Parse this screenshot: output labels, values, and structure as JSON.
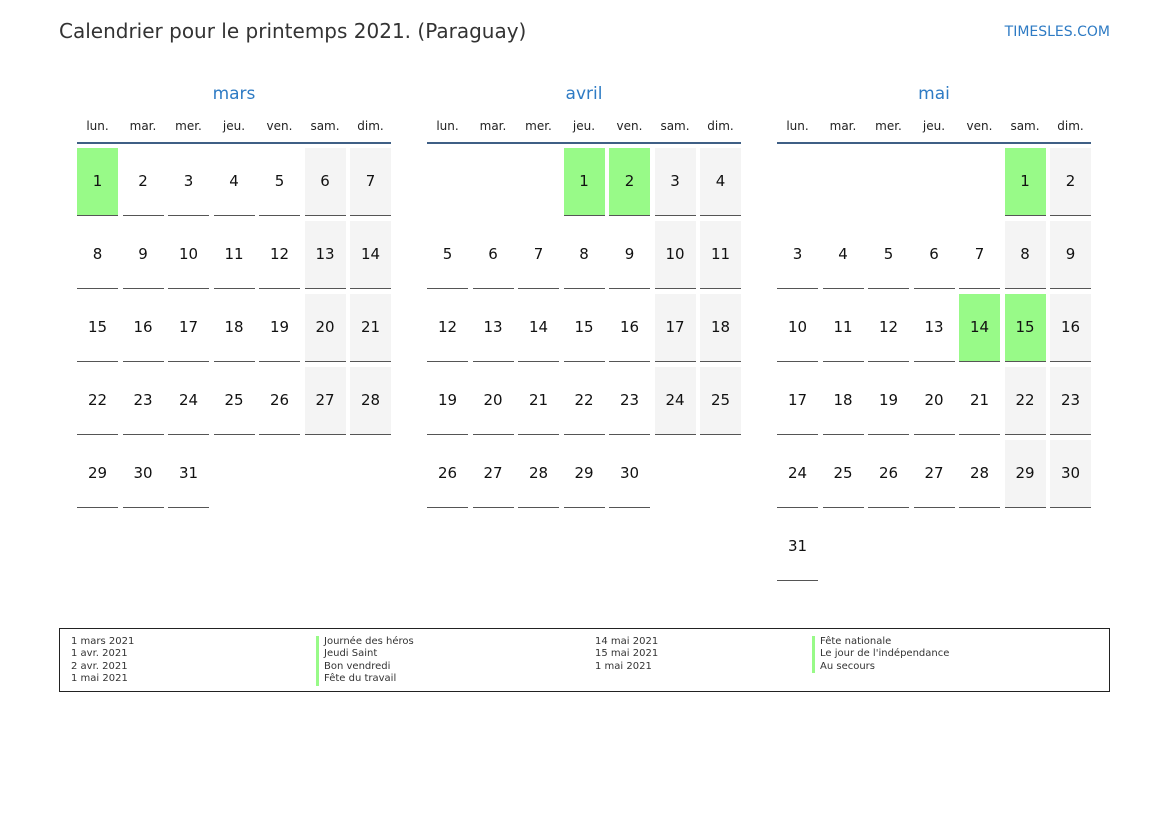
{
  "header": {
    "title": "Calendrier pour le printemps 2021. (Paraguay)",
    "brand": "TIMESLES.COM"
  },
  "colors": {
    "accent": "#2e7bc4",
    "holiday": "#98fa88",
    "weekend": "#f4f4f4"
  },
  "weekdays": [
    "lun.",
    "mar.",
    "mer.",
    "jeu.",
    "ven.",
    "sam.",
    "dim."
  ],
  "months": [
    {
      "name": "mars",
      "first_weekday": 0,
      "days": 31,
      "holidays": [
        1
      ]
    },
    {
      "name": "avril",
      "first_weekday": 3,
      "days": 30,
      "holidays": [
        1,
        2
      ]
    },
    {
      "name": "mai",
      "first_weekday": 5,
      "days": 31,
      "holidays": [
        1,
        14,
        15
      ]
    }
  ],
  "legend": {
    "col1": {
      "dates": [
        "1 mars 2021",
        "1 avr. 2021",
        "2 avr. 2021",
        "1 mai 2021"
      ],
      "names": [
        "Journée des héros",
        "Jeudi Saint",
        "Bon vendredi",
        "Fête du travail"
      ]
    },
    "col2": {
      "dates": [
        "14 mai 2021",
        "15 mai 2021",
        "1 mai 2021"
      ],
      "names": [
        "Fête nationale",
        "Le jour de l'indépendance",
        "Au secours"
      ]
    }
  }
}
